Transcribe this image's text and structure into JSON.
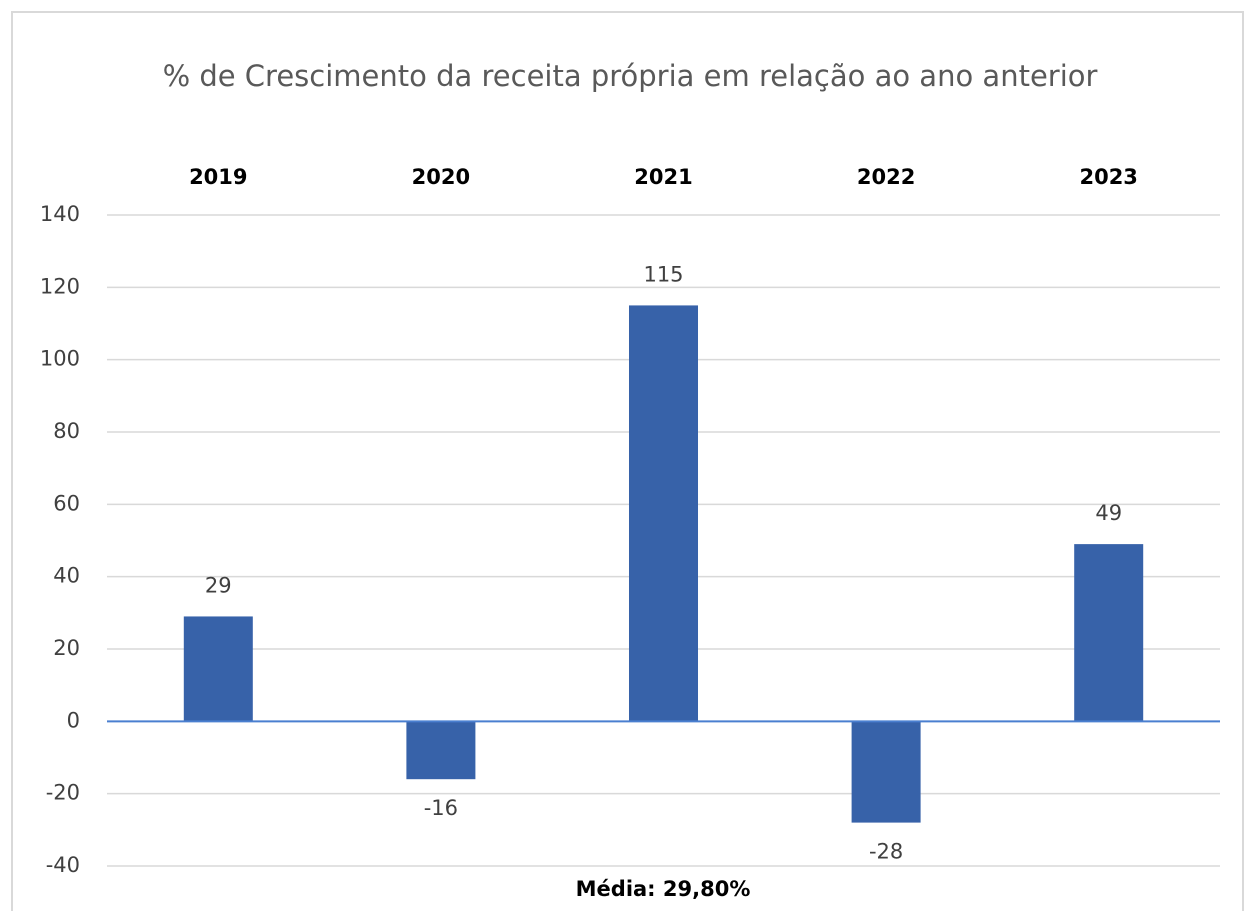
{
  "chart_data": {
    "type": "bar",
    "title": "% de Crescimento da receita própria em relação ao ano anterior",
    "categories": [
      "2019",
      "2020",
      "2021",
      "2022",
      "2023"
    ],
    "values": [
      29,
      -16,
      115,
      -28,
      49
    ],
    "color": "#3762a9",
    "ylim": [
      -40,
      140
    ],
    "yticks": [
      -40,
      -20,
      0,
      20,
      40,
      60,
      80,
      100,
      120,
      140
    ],
    "grid": true,
    "annotation": "Média: 29,80%"
  }
}
